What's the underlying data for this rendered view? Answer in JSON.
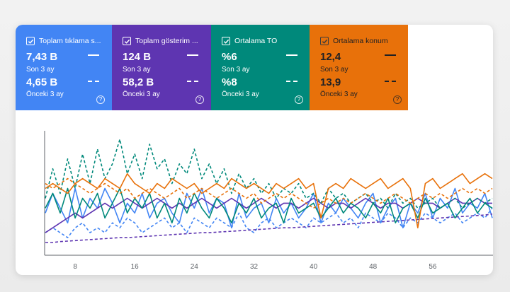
{
  "tiles": [
    {
      "label": "Toplam tıklama s...",
      "value1": "7,43 B",
      "sub1": "Son 3 ay",
      "value2": "4,65 B",
      "sub2": "Önceki 3 ay",
      "color": "#4285f4"
    },
    {
      "label": "Toplam gösterim ...",
      "value1": "124 B",
      "sub1": "Son 3 ay",
      "value2": "58,2 B",
      "sub2": "Önceki 3 ay",
      "color": "#5e35b1"
    },
    {
      "label": "Ortalama TO",
      "value1": "%6",
      "sub1": "Son 3 ay",
      "value2": "%8",
      "sub2": "Önceki 3 ay",
      "color": "#00897b"
    },
    {
      "label": "Ortalama konum",
      "value1": "12,4",
      "sub1": "Son 3 ay",
      "value2": "13,9",
      "sub2": "Önceki 3 ay",
      "color": "#e8710a"
    }
  ],
  "chart_data": {
    "type": "line",
    "x_ticks": [
      "8",
      "16",
      "24",
      "32",
      "40",
      "48",
      "56"
    ],
    "series": [
      {
        "color": "#4285f4",
        "style": "solid",
        "values": [
          7,
          11,
          8,
          5,
          12,
          6,
          10,
          8,
          12,
          9,
          5,
          9,
          7,
          11,
          6,
          9,
          10,
          7,
          5,
          11,
          8,
          12,
          7,
          10,
          9,
          4,
          11,
          6,
          8,
          9,
          5,
          10,
          7,
          9,
          6,
          8,
          11,
          5,
          9,
          7,
          10,
          8,
          6,
          9,
          11,
          5,
          8,
          10,
          4,
          9,
          7,
          11,
          6,
          10,
          8,
          12,
          7,
          9,
          8,
          11,
          6
        ]
      },
      {
        "color": "#4285f4",
        "style": "dashed",
        "values": [
          3,
          4,
          3,
          2,
          4,
          5,
          3,
          4,
          3,
          5,
          4,
          6,
          5,
          3,
          4,
          5,
          6,
          4,
          5,
          3,
          6,
          5,
          4,
          6,
          5,
          4,
          7,
          4,
          3,
          5,
          6,
          4,
          5,
          6,
          5,
          4,
          6,
          5,
          6,
          7,
          5,
          6,
          4,
          7,
          6,
          5,
          7,
          6,
          4,
          6,
          5,
          7,
          6,
          5,
          6,
          7,
          5,
          6,
          7,
          6,
          8
        ]
      },
      {
        "color": "#5e35b1",
        "style": "solid",
        "values": [
          3,
          4,
          5,
          6,
          7,
          6,
          7,
          8,
          9,
          8,
          9,
          10,
          9,
          8,
          9,
          10,
          9,
          8,
          9,
          8,
          9,
          10,
          9,
          8,
          9,
          10,
          9,
          8,
          9,
          10,
          9,
          8,
          9,
          9,
          8,
          9,
          10,
          9,
          8,
          9,
          9,
          8,
          9,
          10,
          9,
          8,
          9,
          9,
          8,
          9,
          10,
          9,
          9,
          8,
          9,
          10,
          9,
          9,
          10,
          9,
          9
        ]
      },
      {
        "color": "#5e35b1",
        "style": "dashed",
        "values": [
          1,
          1,
          1.2,
          1.3,
          1.4,
          1.5,
          1.6,
          1.7,
          1.8,
          1.9,
          2,
          2,
          2.1,
          2.2,
          2.3,
          2.4,
          2.5,
          2.6,
          2.7,
          2.8,
          2.9,
          3,
          3,
          3.1,
          3.2,
          3.3,
          3.4,
          3.5,
          3.6,
          3.7,
          3.8,
          3.9,
          4,
          4,
          4.1,
          4.2,
          4.3,
          4.4,
          4.5,
          4.6,
          4.7,
          4.8,
          4.9,
          5,
          5.1,
          5.2,
          5.3,
          5.4,
          5.5,
          5.6,
          5.7,
          5.8,
          5.9,
          6,
          6.1,
          6.2,
          6.3,
          6.4,
          6.5,
          6.6,
          6.8
        ]
      },
      {
        "color": "#00897b",
        "style": "solid",
        "values": [
          8,
          11,
          7,
          12,
          6,
          10,
          8,
          11,
          6,
          9,
          12,
          7,
          10,
          8,
          11,
          6,
          9,
          5,
          10,
          7,
          11,
          8,
          6,
          10,
          8,
          5,
          9,
          7,
          10,
          6,
          8,
          9,
          5,
          10,
          7,
          8,
          9,
          6,
          8,
          10,
          7,
          9,
          8,
          6,
          9,
          7,
          10,
          5,
          8,
          9,
          6,
          10,
          7,
          8,
          9,
          6,
          8,
          10,
          7,
          9,
          8
        ]
      },
      {
        "color": "#00897b",
        "style": "dashed",
        "values": [
          10,
          16,
          11,
          18,
          12,
          19,
          13,
          20,
          14,
          17,
          22,
          15,
          19,
          14,
          21,
          16,
          18,
          13,
          17,
          15,
          20,
          14,
          17,
          13,
          16,
          11,
          15,
          12,
          14,
          11,
          13,
          10,
          12,
          11,
          13,
          10,
          11,
          9,
          12,
          10,
          11,
          9,
          10,
          11,
          9,
          10,
          8,
          11,
          9,
          10,
          8,
          9,
          10,
          8,
          9,
          10,
          8,
          9,
          10,
          9,
          10
        ]
      },
      {
        "color": "#e8710a",
        "style": "solid",
        "values": [
          12,
          13,
          12,
          11,
          13,
          14,
          13,
          12,
          14,
          13,
          12,
          15,
          13,
          12,
          11,
          13,
          12,
          14,
          13,
          12,
          13,
          11,
          12,
          13,
          12,
          14,
          13,
          12,
          13,
          12,
          11,
          13,
          12,
          13,
          14,
          12,
          13,
          6,
          12,
          13,
          12,
          14,
          13,
          12,
          13,
          14,
          12,
          13,
          14,
          12,
          4,
          13,
          14,
          12,
          13,
          14,
          15,
          13,
          14,
          15,
          14
        ]
      },
      {
        "color": "#e8710a",
        "style": "dashed",
        "values": [
          13,
          12,
          13,
          14,
          13,
          12,
          11,
          12,
          13,
          12,
          11,
          12,
          10,
          11,
          12,
          11,
          10,
          11,
          12,
          10,
          11,
          12,
          11,
          10,
          11,
          12,
          11,
          10,
          11,
          9,
          10,
          11,
          10,
          11,
          10,
          9,
          8,
          9,
          10,
          9,
          10,
          9,
          10,
          11,
          10,
          9,
          10,
          11,
          10,
          9,
          10,
          11,
          10,
          11,
          10,
          11,
          12,
          11,
          12,
          11,
          12
        ]
      }
    ]
  }
}
